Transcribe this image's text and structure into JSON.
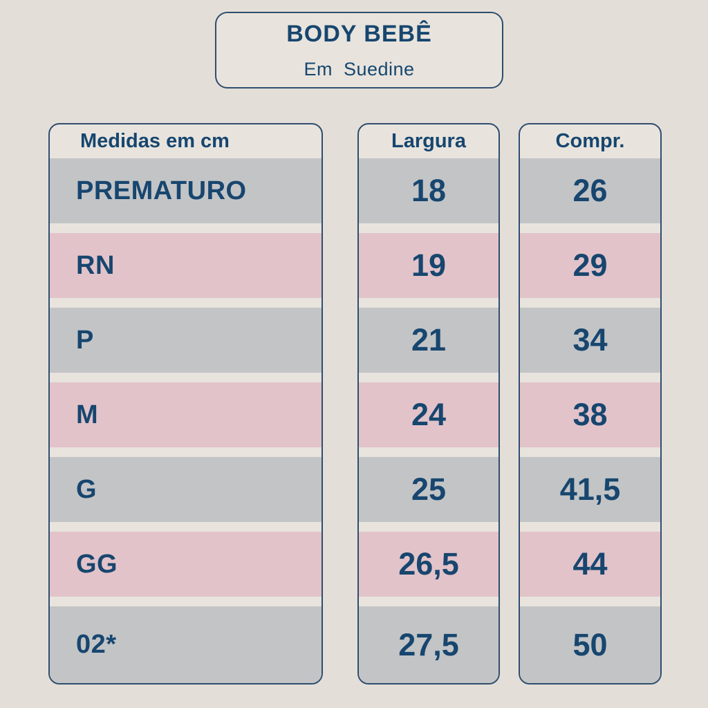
{
  "title": {
    "heading": "BODY BEBÊ",
    "subheading": "Em  Suedine"
  },
  "table": {
    "size_header": "Medidas em cm",
    "width_header": "Largura",
    "length_header": "Compr.",
    "rows": [
      {
        "size": "PREMATURO",
        "width": "18",
        "length": "26",
        "tone": "gray"
      },
      {
        "size": "RN",
        "width": "19",
        "length": "29",
        "tone": "pink"
      },
      {
        "size": "P",
        "width": "21",
        "length": "34",
        "tone": "gray"
      },
      {
        "size": "M",
        "width": "24",
        "length": "38",
        "tone": "pink"
      },
      {
        "size": "G",
        "width": "25",
        "length": "41,5",
        "tone": "gray"
      },
      {
        "size": "GG",
        "width": "26,5",
        "length": "44",
        "tone": "pink"
      },
      {
        "size": "02*",
        "width": "27,5",
        "length": "50",
        "tone": "gray"
      }
    ]
  },
  "chart_data": {
    "type": "table",
    "title": "BODY BEBÊ",
    "subtitle": "Em Suedine",
    "units": "cm",
    "columns": [
      "Medidas em cm",
      "Largura",
      "Compr."
    ],
    "rows": [
      [
        "PREMATURO",
        18,
        26
      ],
      [
        "RN",
        19,
        29
      ],
      [
        "P",
        21,
        34
      ],
      [
        "M",
        24,
        38
      ],
      [
        "G",
        25,
        41.5
      ],
      [
        "GG",
        26.5,
        44
      ],
      [
        "02*",
        27.5,
        50
      ]
    ]
  },
  "colors": {
    "background": "#e3dfd8",
    "panel": "#e8e4dd",
    "gray_row": "#c3c4c6",
    "pink_row": "#e2c3ca",
    "navy_text": "#17466f",
    "border": "#2e4d6e"
  }
}
